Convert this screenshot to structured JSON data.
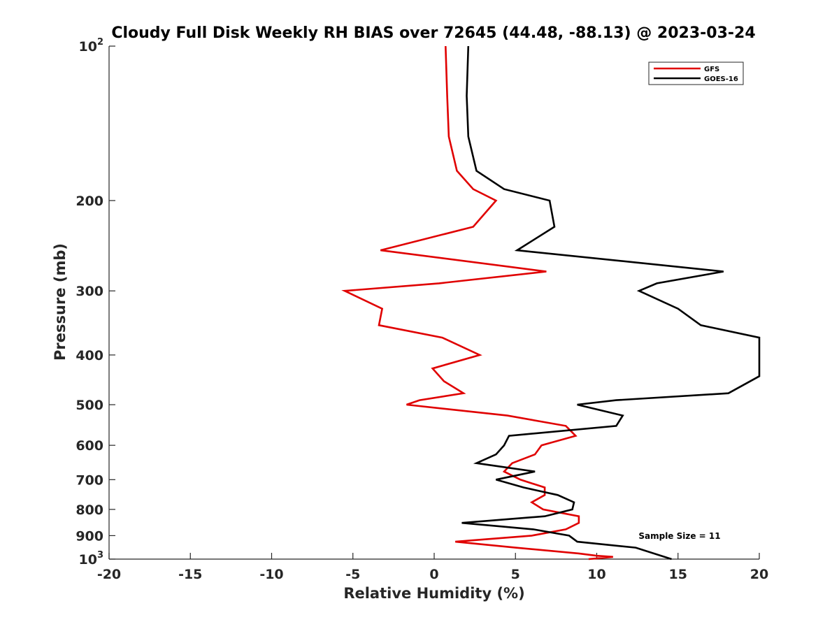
{
  "chart_data": {
    "type": "line",
    "title": "Cloudy Full Disk Weekly RH BIAS over 72645 (44.48, -88.13) @ 2023-03-24",
    "xlabel": "Relative Humidity (%)",
    "ylabel": "Pressure (mb)",
    "xlim": [
      -20,
      20
    ],
    "ylim": [
      100,
      1000
    ],
    "y_scale": "log",
    "y_reversed": true,
    "grid": false,
    "legend_position": "top-right",
    "x_ticks": [
      "-20",
      "-15",
      "-10",
      "-5",
      "0",
      "5",
      "10",
      "15",
      "20"
    ],
    "y_ticks": [
      {
        "value": 100,
        "base": "10",
        "exp": "2"
      },
      {
        "value": 200,
        "label": "200"
      },
      {
        "value": 300,
        "label": "300"
      },
      {
        "value": 400,
        "label": "400"
      },
      {
        "value": 500,
        "label": "500"
      },
      {
        "value": 600,
        "label": "600"
      },
      {
        "value": 700,
        "label": "700"
      },
      {
        "value": 800,
        "label": "800"
      },
      {
        "value": 900,
        "label": "900"
      },
      {
        "value": 1000,
        "base": "10",
        "exp": "3"
      }
    ],
    "annotation": "Sample Size = 11",
    "series": [
      {
        "name": "GFS",
        "color": "#e00000",
        "points": [
          [
            0.7,
            100
          ],
          [
            0.8,
            125
          ],
          [
            0.9,
            150
          ],
          [
            1.4,
            175
          ],
          [
            2.4,
            190
          ],
          [
            3.8,
            200
          ],
          [
            2.4,
            225
          ],
          [
            -3.3,
            250
          ],
          [
            6.9,
            275
          ],
          [
            0.3,
            290
          ],
          [
            -5.5,
            300
          ],
          [
            -3.2,
            325
          ],
          [
            -3.4,
            350
          ],
          [
            0.5,
            370
          ],
          [
            2.8,
            400
          ],
          [
            -0.1,
            425
          ],
          [
            0.6,
            450
          ],
          [
            1.8,
            475
          ],
          [
            -0.9,
            490
          ],
          [
            -1.7,
            500
          ],
          [
            4.5,
            525
          ],
          [
            8.1,
            550
          ],
          [
            8.7,
            575
          ],
          [
            6.6,
            600
          ],
          [
            6.2,
            625
          ],
          [
            4.8,
            650
          ],
          [
            4.3,
            675
          ],
          [
            5.3,
            700
          ],
          [
            6.8,
            725
          ],
          [
            6.8,
            750
          ],
          [
            6.0,
            775
          ],
          [
            6.7,
            800
          ],
          [
            8.9,
            825
          ],
          [
            8.9,
            850
          ],
          [
            8.1,
            875
          ],
          [
            6.0,
            900
          ],
          [
            1.3,
            925
          ],
          [
            5.0,
            950
          ],
          [
            8.9,
            975
          ],
          [
            10.0,
            985
          ],
          [
            11.0,
            990
          ],
          [
            9.5,
            1000
          ]
        ]
      },
      {
        "name": "GOES-16",
        "color": "#000000",
        "points": [
          [
            2.1,
            100
          ],
          [
            2.0,
            125
          ],
          [
            2.1,
            150
          ],
          [
            2.6,
            175
          ],
          [
            4.3,
            190
          ],
          [
            7.1,
            200
          ],
          [
            7.4,
            225
          ],
          [
            5.1,
            250
          ],
          [
            17.8,
            275
          ],
          [
            13.7,
            290
          ],
          [
            12.6,
            300
          ],
          [
            15.0,
            325
          ],
          [
            16.4,
            350
          ],
          [
            20.0,
            370
          ],
          [
            20.0,
            440
          ],
          [
            18.1,
            475
          ],
          [
            11.2,
            490
          ],
          [
            8.8,
            500
          ],
          [
            11.6,
            525
          ],
          [
            11.2,
            550
          ],
          [
            4.6,
            575
          ],
          [
            4.3,
            600
          ],
          [
            3.8,
            625
          ],
          [
            2.6,
            650
          ],
          [
            6.2,
            675
          ],
          [
            3.8,
            700
          ],
          [
            5.5,
            725
          ],
          [
            7.6,
            750
          ],
          [
            8.6,
            775
          ],
          [
            8.5,
            800
          ],
          [
            6.8,
            825
          ],
          [
            1.7,
            850
          ],
          [
            6.1,
            875
          ],
          [
            8.3,
            900
          ],
          [
            8.8,
            925
          ],
          [
            12.4,
            950
          ],
          [
            14.6,
            1000
          ]
        ]
      }
    ]
  }
}
